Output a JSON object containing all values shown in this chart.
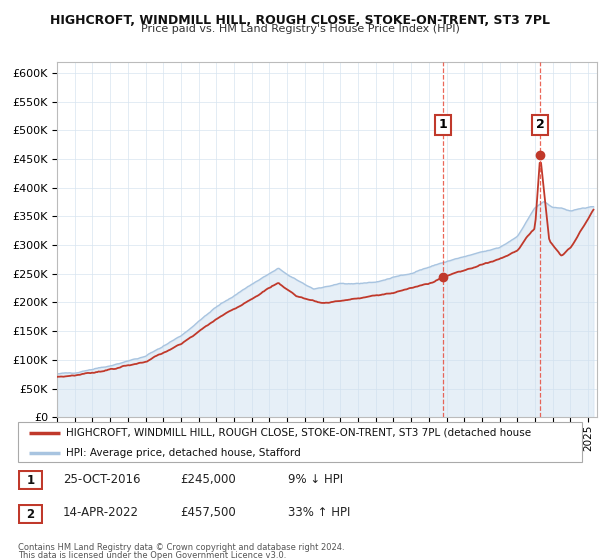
{
  "title": "HIGHCROFT, WINDMILL HILL, ROUGH CLOSE, STOKE-ON-TRENT, ST3 7PL",
  "subtitle": "Price paid vs. HM Land Registry's House Price Index (HPI)",
  "ylim": [
    0,
    620000
  ],
  "yticks": [
    0,
    50000,
    100000,
    150000,
    200000,
    250000,
    300000,
    350000,
    400000,
    450000,
    500000,
    550000,
    600000
  ],
  "xlim_start": 1995.0,
  "xlim_end": 2025.5,
  "hpi_color": "#a8c4e0",
  "hpi_fill_color": "#cfe0f0",
  "price_color": "#c0392b",
  "marker_color": "#c0392b",
  "vline_color": "#e74c3c",
  "point1_x": 2016.82,
  "point1_y": 245000,
  "point2_x": 2022.29,
  "point2_y": 457500,
  "legend_line1": "HIGHCROFT, WINDMILL HILL, ROUGH CLOSE, STOKE-ON-TRENT, ST3 7PL (detached house",
  "legend_line2": "HPI: Average price, detached house, Stafford",
  "table_row1": [
    "1",
    "25-OCT-2016",
    "£245,000",
    "9% ↓ HPI"
  ],
  "table_row2": [
    "2",
    "14-APR-2022",
    "£457,500",
    "33% ↑ HPI"
  ],
  "footnote1": "Contains HM Land Registry data © Crown copyright and database right 2024.",
  "footnote2": "This data is licensed under the Open Government Licence v3.0.",
  "grid_color": "#d8e4f0",
  "spine_color": "#bbbbbb",
  "box_edge_color": "#c0392b"
}
